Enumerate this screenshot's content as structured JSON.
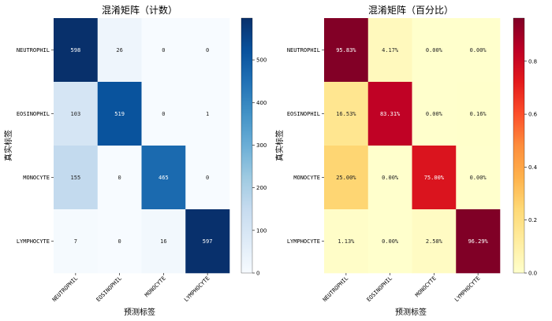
{
  "chart_data": [
    {
      "type": "heatmap",
      "title": "混淆矩阵（计数）",
      "xlabel": "预测标签",
      "ylabel": "真实标签",
      "x_categories": [
        "NEUTROPHIL",
        "EOSINOPHIL",
        "MONOCYTE",
        "LYMPHOCYTE"
      ],
      "y_categories": [
        "NEUTROPHIL",
        "EOSINOPHIL",
        "MONOCYTE",
        "LYMPHOCYTE"
      ],
      "values": [
        [
          598,
          26,
          0,
          0
        ],
        [
          103,
          519,
          0,
          1
        ],
        [
          155,
          0,
          465,
          0
        ],
        [
          7,
          0,
          16,
          597
        ]
      ],
      "annotations": [
        [
          "598",
          "26",
          "0",
          "0"
        ],
        [
          "103",
          "519",
          "0",
          "1"
        ],
        [
          "155",
          "0",
          "465",
          "0"
        ],
        [
          "7",
          "0",
          "16",
          "597"
        ]
      ],
      "colormap": "Blues",
      "colorbar": {
        "min": 0,
        "max": 598,
        "ticks": [
          0,
          100,
          200,
          300,
          400,
          500
        ],
        "tick_labels": [
          "0",
          "100",
          "200",
          "300",
          "400",
          "500"
        ]
      }
    },
    {
      "type": "heatmap",
      "title": "混淆矩阵（百分比）",
      "xlabel": "预测标签",
      "ylabel": "真实标签",
      "x_categories": [
        "NEUTROPHIL",
        "EOSINOPHIL",
        "MONOCYTE",
        "LYMPHOCYTE"
      ],
      "y_categories": [
        "NEUTROPHIL",
        "EOSINOPHIL",
        "MONOCYTE",
        "LYMPHOCYTE"
      ],
      "values": [
        [
          0.9583,
          0.0417,
          0.0,
          0.0
        ],
        [
          0.1653,
          0.8331,
          0.0,
          0.0016
        ],
        [
          0.25,
          0.0,
          0.75,
          0.0
        ],
        [
          0.0113,
          0.0,
          0.0258,
          0.9629
        ]
      ],
      "annotations": [
        [
          "95.83%",
          "4.17%",
          "0.00%",
          "0.00%"
        ],
        [
          "16.53%",
          "83.31%",
          "0.00%",
          "0.16%"
        ],
        [
          "25.00%",
          "0.00%",
          "75.00%",
          "0.00%"
        ],
        [
          "1.13%",
          "0.00%",
          "2.58%",
          "96.29%"
        ]
      ],
      "colormap": "YlOrRd",
      "colorbar": {
        "min": 0,
        "max": 0.9629,
        "ticks": [
          0,
          0.2,
          0.4,
          0.6,
          0.8
        ],
        "tick_labels": [
          "0.0",
          "0.2",
          "0.4",
          "0.6",
          "0.8"
        ]
      }
    }
  ]
}
